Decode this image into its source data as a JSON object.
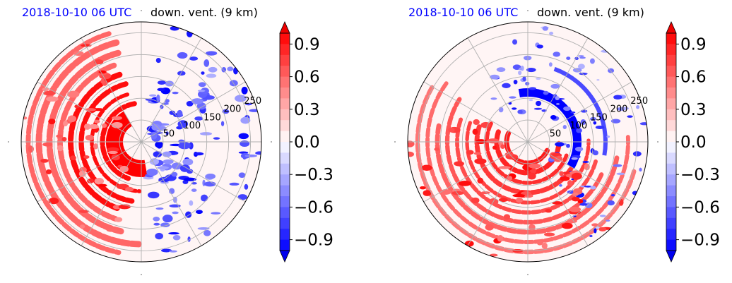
{
  "colors": {
    "red": "#ff0000",
    "blue": "#0000ff",
    "grid": "#b0b0b0"
  },
  "panels": [
    {
      "title_left": "2018-10-10 06 UTC",
      "title_right": "down. vent. (9 km)"
    },
    {
      "title_left": "2018-10-10 06 UTC",
      "title_right": "down. vent. (9 km)"
    }
  ],
  "chart_data": [
    {
      "type": "heatmap",
      "projection": "polar",
      "title_left": "2018-10-10 06 UTC",
      "title_right": "down. vent. (9 km)",
      "radial_ticks": [
        50,
        100,
        150,
        200,
        250
      ],
      "colorbar": {
        "min": -1.0,
        "max": 1.0,
        "ticks": [
          -0.9,
          -0.6,
          -0.3,
          0.0,
          0.3,
          0.6,
          0.9
        ],
        "tick_labels": [
          "−0.9",
          "−0.6",
          "−0.3",
          "0.0",
          "0.3",
          "0.6",
          "0.9"
        ],
        "extend": "both"
      }
    },
    {
      "type": "heatmap",
      "projection": "polar",
      "title_left": "2018-10-10 06 UTC",
      "title_right": "down. vent. (9 km)",
      "radial_ticks": [
        50,
        100,
        150,
        200,
        250
      ],
      "colorbar": {
        "min": -1.0,
        "max": 1.0,
        "ticks": [
          -0.9,
          -0.6,
          -0.3,
          0.0,
          0.3,
          0.6,
          0.9
        ],
        "tick_labels": [
          "−0.9",
          "−0.6",
          "−0.3",
          "0.0",
          "0.3",
          "0.6",
          "0.9"
        ],
        "extend": "both"
      }
    }
  ]
}
